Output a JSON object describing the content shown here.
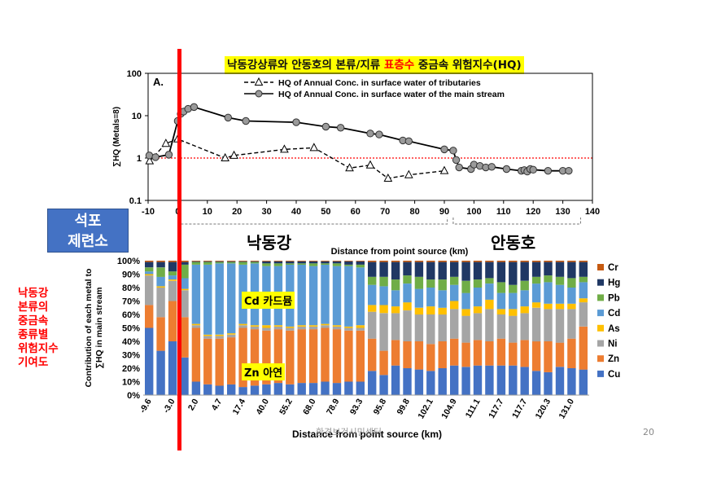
{
  "slide": {
    "title_part1": "낙동강상류와 안동호의 본류/지류 ",
    "title_highlight": "표층수",
    "title_part2": " 중금속 위험지수(HQ)",
    "plant_label_line1": "석포",
    "plant_label_line2": "제련소",
    "region_left": "낙동강",
    "region_right": "안동호",
    "left_note": [
      "낙동강",
      "본류의",
      "중금속",
      "종류별",
      "위험지수",
      "기여도"
    ],
    "label_cd": "Cd 카드뮴",
    "label_zn": "Zn 아연",
    "footer_text": "환경보건시민센터",
    "page_number": "20",
    "colors": {
      "title_highlight_bg": "#ffff00",
      "marker_line": "#ff0000",
      "plant_box": "#4472c4"
    }
  },
  "chart_data": [
    {
      "type": "line",
      "panel_label": "A.",
      "ylabel": "∑HQ (Metals=8)",
      "yscale": "log",
      "ylim": [
        0.1,
        100
      ],
      "xlim": [
        -10,
        140
      ],
      "yticks": [
        "0.1",
        "1",
        "10",
        "100"
      ],
      "xticks": [
        "-10",
        "0",
        "10",
        "20",
        "30",
        "40",
        "50",
        "60",
        "70",
        "80",
        "90",
        "100",
        "110",
        "120",
        "130",
        "140"
      ],
      "reference_line": {
        "y": 1,
        "color": "#ff0000",
        "style": "dotted"
      },
      "legend_position": "top",
      "series": [
        {
          "name": "HQ of Annual Conc. in surface water of tributaries",
          "marker": "open-triangle",
          "line": "dashed",
          "color": "#000000",
          "points": [
            [
              -9.5,
              0.85
            ],
            [
              -4,
              2.2
            ],
            [
              0,
              2.8
            ],
            [
              16,
              1.0
            ],
            [
              19,
              1.15
            ],
            [
              36,
              1.6
            ],
            [
              46,
              1.75
            ],
            [
              58,
              0.58
            ],
            [
              65,
              0.68
            ],
            [
              71,
              0.33
            ],
            [
              78,
              0.4
            ],
            [
              90,
              0.5
            ]
          ]
        },
        {
          "name": "HQ of Annual Conc. in surface water of the main stream",
          "marker": "filled-circle",
          "line": "solid",
          "color": "#000000",
          "points": [
            [
              -9.6,
              1.15
            ],
            [
              -7.5,
              1.05
            ],
            [
              -3,
              1.2
            ],
            [
              0,
              7.5
            ],
            [
              1,
              11
            ],
            [
              2,
              12.5
            ],
            [
              3.5,
              14.5
            ],
            [
              5.5,
              16
            ],
            [
              17,
              9
            ],
            [
              23,
              7.5
            ],
            [
              40,
              7
            ],
            [
              50,
              5.5
            ],
            [
              55,
              5.2
            ],
            [
              65,
              3.8
            ],
            [
              68,
              3.6
            ],
            [
              76,
              2.6
            ],
            [
              78,
              2.5
            ],
            [
              90,
              1.6
            ],
            [
              93,
              1.5
            ],
            [
              94,
              0.9
            ],
            [
              95,
              0.6
            ],
            [
              99,
              0.55
            ],
            [
              100,
              0.7
            ],
            [
              102,
              0.65
            ],
            [
              104,
              0.6
            ],
            [
              106,
              0.62
            ],
            [
              111,
              0.55
            ],
            [
              116,
              0.5
            ],
            [
              117,
              0.52
            ],
            [
              118,
              0.48
            ],
            [
              119,
              0.55
            ],
            [
              120,
              0.53
            ],
            [
              125,
              0.5
            ],
            [
              130,
              0.5
            ],
            [
              132,
              0.5
            ]
          ]
        }
      ]
    },
    {
      "type": "bar",
      "stacked": true,
      "ylabel": "Contribution of each metal to ∑HQ in main stream",
      "xlabel": "Distance from point source (km)",
      "ylim": [
        0,
        100
      ],
      "yticks": [
        "0%",
        "10%",
        "20%",
        "30%",
        "40%",
        "50%",
        "60%",
        "70%",
        "80%",
        "90%",
        "100%"
      ],
      "legend_position": "right",
      "categories": [
        "-9.6",
        "-7.5",
        "-3.0",
        "-0.5",
        "2.0",
        "3.5",
        "4.7",
        "10.0",
        "17.4",
        "23.0",
        "40.0",
        "45.0",
        "55.2",
        "60.0",
        "68.0",
        "73.0",
        "78.9",
        "86.0",
        "93.3",
        "94.5",
        "95.8",
        "97.0",
        "99.8",
        "100.5",
        "102.1",
        "103.5",
        "104.9",
        "107.0",
        "111.1",
        "114.0",
        "117.7",
        "117.7",
        "117.7",
        "119.0",
        "120.3",
        "125.0",
        "131.0",
        "132.0"
      ],
      "tick_labels_shown": [
        "-9.6",
        "-3.0",
        "2.0",
        "4.7",
        "17.4",
        "40.0",
        "55.2",
        "68.0",
        "78.9",
        "93.3",
        "95.8",
        "99.8",
        "102.1",
        "104.9",
        "111.1",
        "117.7",
        "117.7",
        "120.3",
        "131.0"
      ],
      "series": [
        {
          "name": "Cu",
          "color": "#4472c4",
          "values": [
            50,
            33,
            40,
            28,
            10,
            8,
            7,
            8,
            6,
            7,
            8,
            9,
            8,
            9,
            9,
            10,
            9,
            10,
            10,
            18,
            15,
            22,
            20,
            19,
            18,
            20,
            22,
            21,
            22,
            22,
            22,
            22,
            21,
            18,
            17,
            21,
            20,
            19
          ]
        },
        {
          "name": "Zn",
          "color": "#ed7d31",
          "values": [
            17,
            25,
            30,
            30,
            40,
            34,
            35,
            35,
            44,
            42,
            40,
            40,
            40,
            40,
            40,
            40,
            40,
            38,
            38,
            24,
            18,
            19,
            20,
            21,
            20,
            20,
            20,
            18,
            19,
            18,
            20,
            17,
            20,
            22,
            23,
            18,
            22,
            32
          ]
        },
        {
          "name": "Ni",
          "color": "#a5a5a5",
          "values": [
            22,
            22,
            15,
            20,
            2,
            2,
            2,
            2,
            2,
            2,
            2,
            2,
            2,
            2,
            2,
            2,
            2,
            2,
            2,
            20,
            28,
            20,
            23,
            20,
            22,
            20,
            22,
            20,
            20,
            24,
            18,
            20,
            20,
            25,
            24,
            25,
            22,
            18
          ]
        },
        {
          "name": "As",
          "color": "#ffc000",
          "values": [
            1,
            1,
            1,
            1,
            1,
            1,
            1,
            1,
            1,
            1,
            2,
            1,
            1,
            1,
            1,
            1,
            1,
            1,
            2,
            5,
            6,
            5,
            6,
            5,
            6,
            5,
            6,
            5,
            5,
            7,
            4,
            5,
            5,
            4,
            4,
            4,
            4,
            3
          ]
        },
        {
          "name": "Cd",
          "color": "#5b9bd5",
          "values": [
            2,
            7,
            3,
            8,
            44,
            52,
            53,
            52,
            44,
            46,
            44,
            44,
            46,
            45,
            44,
            44,
            44,
            45,
            43,
            15,
            14,
            12,
            14,
            14,
            14,
            13,
            12,
            12,
            14,
            12,
            12,
            12,
            12,
            14,
            16,
            14,
            12,
            12
          ]
        },
        {
          "name": "Pb",
          "color": "#70ad47",
          "values": [
            3,
            7,
            3,
            10,
            2,
            2,
            1,
            1,
            2,
            1,
            2,
            2,
            1,
            1,
            2,
            1,
            2,
            1,
            2,
            6,
            7,
            8,
            6,
            9,
            6,
            8,
            6,
            9,
            6,
            4,
            8,
            6,
            7,
            5,
            5,
            6,
            7,
            4
          ]
        },
        {
          "name": "Hg",
          "color": "#203864",
          "values": [
            4,
            4,
            7,
            2,
            0.5,
            0.5,
            0.5,
            0.5,
            0.5,
            0.5,
            1.5,
            1.5,
            1.5,
            1.5,
            1.5,
            1.5,
            1.5,
            2.5,
            2.5,
            11,
            11,
            13,
            10,
            11,
            13,
            13,
            11,
            14,
            13,
            12,
            15,
            17,
            14,
            11,
            10,
            11,
            12,
            11
          ]
        },
        {
          "name": "Cr",
          "color": "#c55a11",
          "values": [
            1,
            1,
            1,
            1,
            0.5,
            0.5,
            0.5,
            0.5,
            0.5,
            0.5,
            0.5,
            0.5,
            0.5,
            0.5,
            0.5,
            0.5,
            0.5,
            0.5,
            0.5,
            1,
            1,
            1,
            1,
            1,
            1,
            1,
            1,
            1,
            1,
            1,
            1,
            1,
            1,
            1,
            1,
            1,
            1,
            1
          ]
        }
      ]
    }
  ]
}
